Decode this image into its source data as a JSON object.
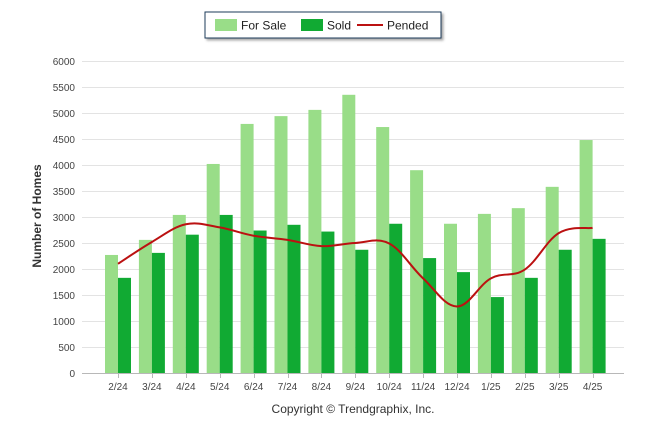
{
  "chart_data": {
    "type": "bar",
    "categories": [
      "2/24",
      "3/24",
      "4/24",
      "5/24",
      "6/24",
      "7/24",
      "8/24",
      "9/24",
      "10/24",
      "11/24",
      "12/24",
      "1/25",
      "2/25",
      "3/25",
      "4/25"
    ],
    "series": [
      {
        "name": "For Sale",
        "type": "bar",
        "color": "#99dd88",
        "values": [
          2270,
          2560,
          3040,
          4020,
          4790,
          4940,
          5060,
          5350,
          4730,
          3900,
          2870,
          3060,
          3170,
          3580,
          4480
        ]
      },
      {
        "name": "Sold",
        "type": "bar",
        "color": "#11aa33",
        "values": [
          1830,
          2310,
          2660,
          3040,
          2740,
          2850,
          2720,
          2370,
          2870,
          2210,
          1940,
          1460,
          1830,
          2370,
          2580
        ]
      },
      {
        "name": "Pended",
        "type": "line",
        "color": "#bb1111",
        "values": [
          2100,
          2520,
          2860,
          2800,
          2640,
          2560,
          2440,
          2500,
          2490,
          1820,
          1280,
          1820,
          1990,
          2690,
          2790
        ]
      }
    ],
    "ylabel": "Number of Homes",
    "xlabel": "",
    "ylim": [
      0,
      6000
    ],
    "yticks": [
      0,
      500,
      1000,
      1500,
      2000,
      2500,
      3000,
      3500,
      4000,
      4500,
      5000,
      5500,
      6000
    ],
    "grid": true,
    "legend_position": "top-center"
  },
  "footer": {
    "credit": "Copyright © Trendgraphix, Inc."
  }
}
